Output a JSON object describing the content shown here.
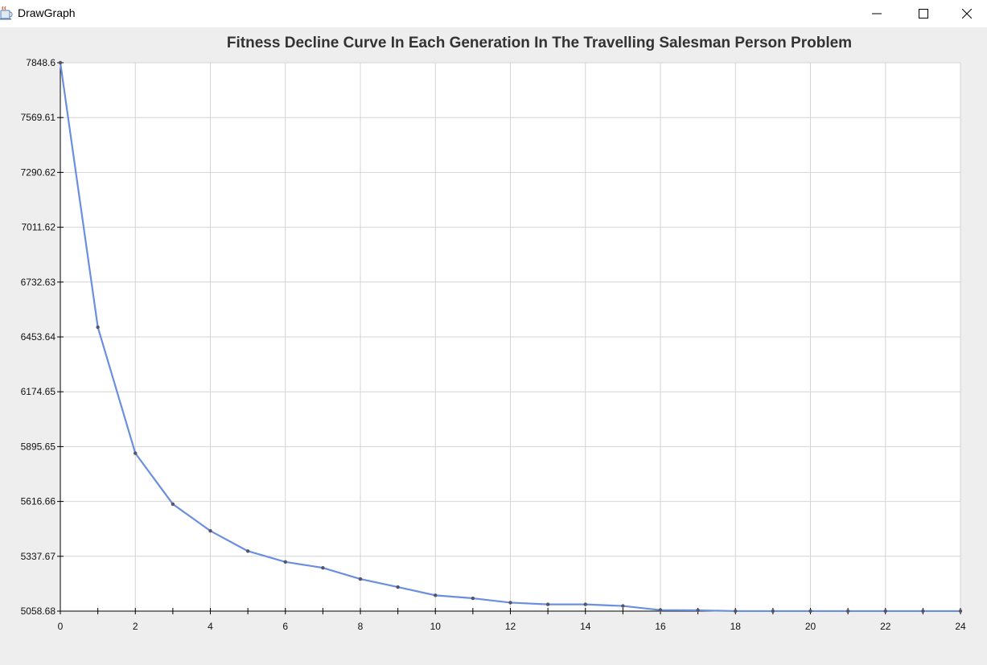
{
  "window": {
    "title": "DrawGraph",
    "icon": "java-cup-icon",
    "controls": [
      "minimize-icon",
      "maximize-icon",
      "close-icon"
    ]
  },
  "chart_data": {
    "type": "line",
    "title": "Fitness Decline Curve In Each Generation In The Travelling Salesman Person Problem",
    "xlabel": "",
    "ylabel": "",
    "xlim": [
      0,
      24
    ],
    "ylim": [
      5058.68,
      7848.6
    ],
    "x_ticks": [
      "0",
      "2",
      "4",
      "6",
      "8",
      "10",
      "12",
      "14",
      "16",
      "18",
      "20",
      "22",
      "24"
    ],
    "y_ticks": [
      "5058.68",
      "5337.67",
      "5616.66",
      "5895.65",
      "6174.65",
      "6453.64",
      "6732.63",
      "7011.62",
      "7290.62",
      "7569.61",
      "7848.6"
    ],
    "grid": true,
    "line_color": "#6a8fe0",
    "marker_color": "#555566",
    "series": [
      {
        "x": [
          0,
          1,
          2,
          3,
          4,
          5,
          6,
          7,
          8,
          9,
          10,
          11,
          12,
          13,
          14,
          15,
          16,
          17,
          18,
          19,
          20,
          21,
          22,
          23,
          24
        ],
        "values": [
          7848.6,
          6503,
          5862,
          5603,
          5467,
          5364,
          5309,
          5279,
          5222,
          5181,
          5139,
          5124,
          5102,
          5093,
          5093,
          5085,
          5064,
          5063,
          5059,
          5059,
          5059,
          5059,
          5059,
          5059,
          5059
        ]
      }
    ]
  }
}
